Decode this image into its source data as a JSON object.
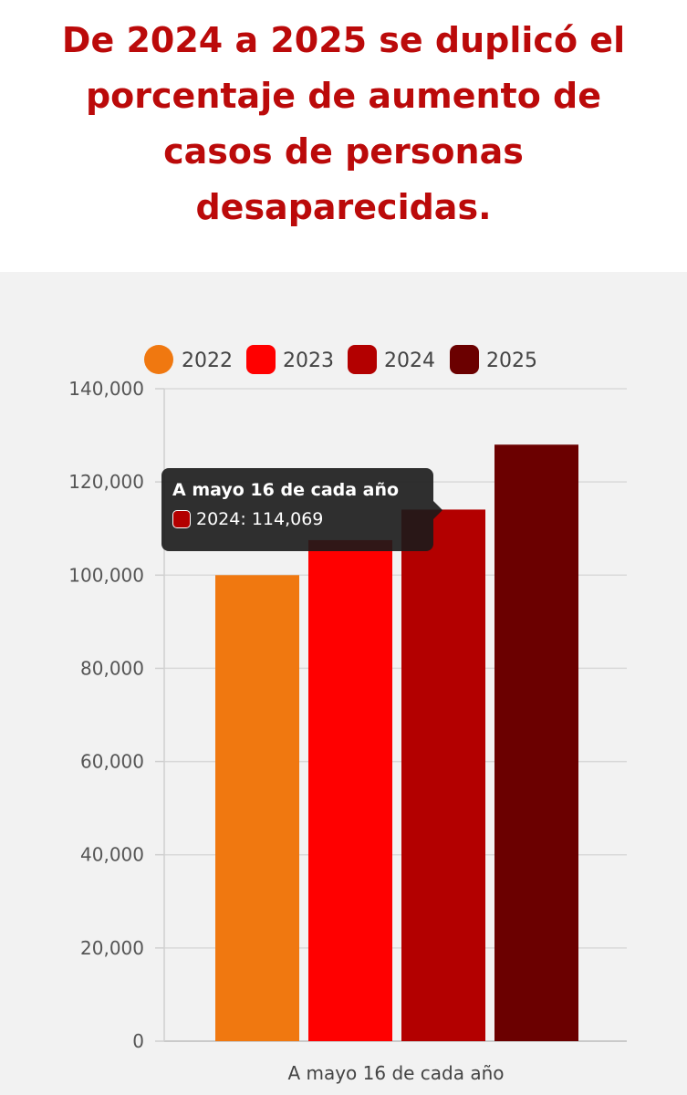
{
  "headline": "De 2024 a 2025 se duplicó el porcentaje de aumento de casos de personas desaparecidas.",
  "colors": {
    "headline": "#bb0a0a",
    "panel_background": "#f2f2f2",
    "tooltip_background": "#1a1a1a"
  },
  "tooltip": {
    "title": "A mayo 16 de cada año",
    "series": "2024",
    "value_text": "114,069",
    "color": "#b30000"
  },
  "chart_data": {
    "type": "bar",
    "categories": [
      "A mayo 16 de cada año"
    ],
    "series": [
      {
        "name": "2022",
        "values": [
          100000
        ],
        "color": "#f07810"
      },
      {
        "name": "2023",
        "values": [
          107500
        ],
        "color": "#ff0000"
      },
      {
        "name": "2024",
        "values": [
          114069
        ],
        "color": "#b30000"
      },
      {
        "name": "2025",
        "values": [
          128000
        ],
        "color": "#6b0000"
      }
    ],
    "title": "",
    "xlabel": "",
    "ylabel": "",
    "ylim": [
      0,
      140000
    ],
    "yticks": [
      0,
      20000,
      40000,
      60000,
      80000,
      100000,
      120000,
      140000
    ],
    "ytick_labels": [
      "0",
      "20,000",
      "40,000",
      "60,000",
      "80,000",
      "100,000",
      "120,000",
      "140,000"
    ],
    "grid": true,
    "legend_position": "top"
  }
}
